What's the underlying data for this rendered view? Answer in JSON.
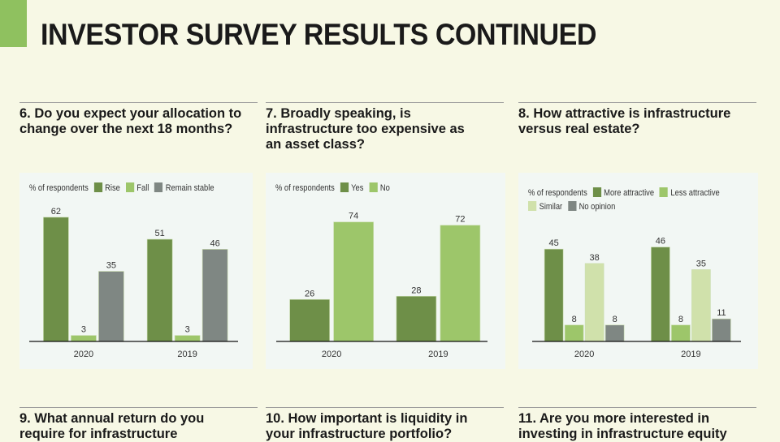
{
  "page_title": "INVESTOR SURVEY RESULTS CONTINUED",
  "questions": [
    "6. Do you expect your allocation to change over the next 18 months?",
    "7. Broadly speaking, is infrastructure too expensive as an asset class?",
    "8. How attractive is infrastructure versus real estate?",
    "9. What annual return do you require for infrastructure",
    "10. How important is liquidity in your infrastructure portfolio?",
    "11. Are you more interested in investing in infrastructure equity"
  ],
  "chart_data": [
    {
      "type": "bar",
      "legend_title": "% of respondents",
      "categories": [
        "2020",
        "2019"
      ],
      "ylim": [
        0,
        65
      ],
      "series": [
        {
          "name": "Rise",
          "color": "#6e8f48",
          "values": [
            62,
            51
          ]
        },
        {
          "name": "Fall",
          "color": "#9dc66a",
          "values": [
            3,
            3
          ]
        },
        {
          "name": "Remain stable",
          "color": "#7f8783",
          "values": [
            35,
            46
          ]
        }
      ]
    },
    {
      "type": "bar",
      "legend_title": "% of respondents",
      "categories": [
        "2020",
        "2019"
      ],
      "ylim": [
        0,
        78
      ],
      "series": [
        {
          "name": "Yes",
          "color": "#6e8f48",
          "values": [
            26,
            28
          ]
        },
        {
          "name": "No",
          "color": "#9dc66a",
          "values": [
            74,
            72
          ]
        }
      ]
    },
    {
      "type": "bar",
      "legend_title": "% of respondents",
      "categories": [
        "2020",
        "2019"
      ],
      "ylim": [
        0,
        80
      ],
      "series": [
        {
          "name": "More attractive",
          "color": "#6e8f48",
          "values": [
            45,
            46
          ]
        },
        {
          "name": "Less attractive",
          "color": "#9dc66a",
          "values": [
            8,
            8
          ]
        },
        {
          "name": "Similar",
          "color": "#d0e1ab",
          "values": [
            38,
            35
          ]
        },
        {
          "name": "No opinion",
          "color": "#7f8783",
          "values": [
            8,
            11
          ]
        }
      ]
    }
  ]
}
